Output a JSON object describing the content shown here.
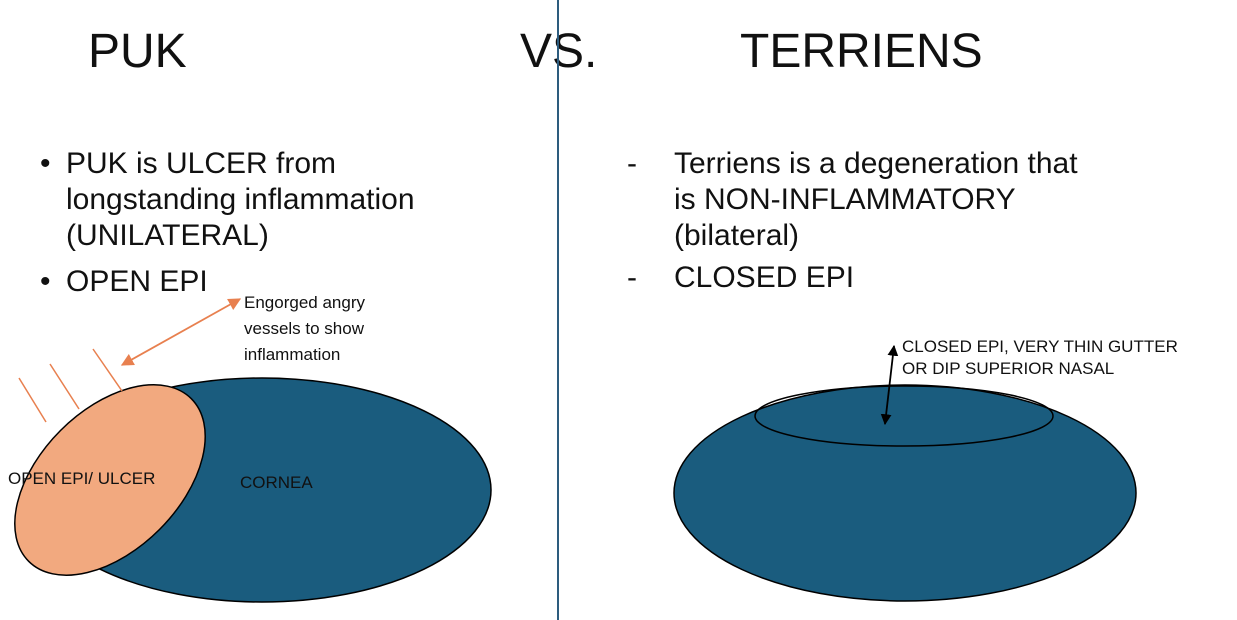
{
  "titles": {
    "left": "PUK",
    "middle": "VS.",
    "right": "TERRIENS"
  },
  "puk": {
    "bullet_mark": "•",
    "bullets": [
      "PUK is ULCER from longstanding inflammation (UNILATERAL)",
      "OPEN EPI"
    ],
    "vessels_label": [
      "Engorged angry",
      "vessels to show",
      "inflammation"
    ],
    "ulcer_label": "OPEN EPI/ ULCER",
    "cornea_label": "CORNEA"
  },
  "terriens": {
    "bullet_mark": "-",
    "bullets": [
      "Terriens is a degeneration that is NON-INFLAMMATORY (bilateral)",
      "CLOSED EPI"
    ],
    "gutter_label": [
      "CLOSED EPI, VERY THIN GUTTER",
      "OR DIP SUPERIOR NASAL"
    ]
  },
  "colors": {
    "cornea_fill": "#1a5c7e",
    "ulcer_fill": "#f2a97f",
    "vessel_stroke": "#e8804f",
    "divider": "#2d5c7e",
    "outline": "#000000"
  }
}
